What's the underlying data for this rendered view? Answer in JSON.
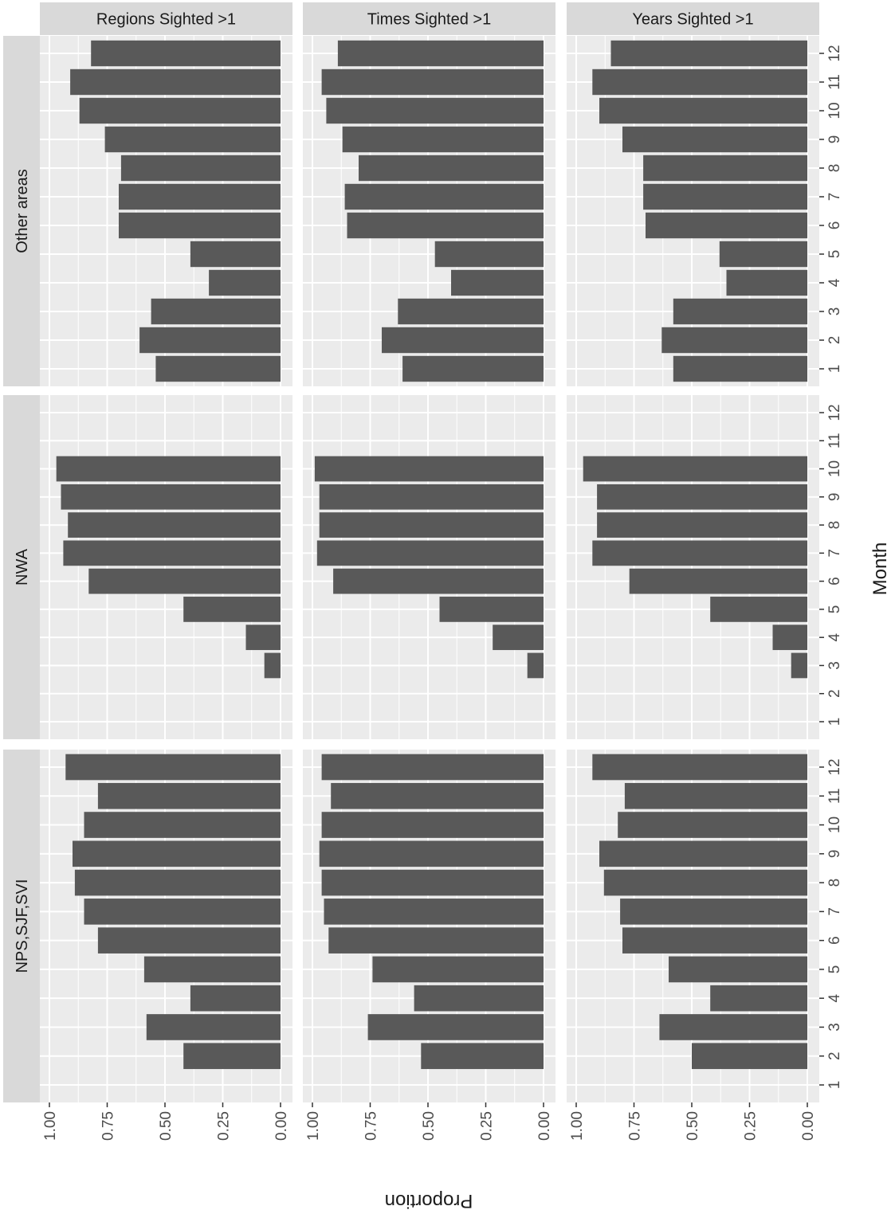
{
  "chart_data": {
    "type": "bar",
    "orientation": "rotated-90-clockwise",
    "xlabel": "Month",
    "ylabel": "Proportion",
    "categories": [
      "1",
      "2",
      "3",
      "4",
      "5",
      "6",
      "7",
      "8",
      "9",
      "10",
      "11",
      "12"
    ],
    "ylim": [
      0,
      1.05
    ],
    "yticks": [
      "0.00",
      "0.25",
      "0.50",
      "0.75",
      "1.00"
    ],
    "grid": true,
    "bar_color": "#595959",
    "panel_bg": "#ebebeb",
    "strip_bg": "#d9d9d9",
    "columns": [
      "Regions Sighted >1",
      "Times Sighted >1",
      "Years Sighted >1"
    ],
    "rows": [
      "Other areas",
      "NWA",
      "NPS,SJF,SVI"
    ],
    "panels": [
      [
        {
          "values": [
            0.54,
            0.61,
            0.56,
            0.31,
            0.39,
            0.7,
            0.7,
            0.69,
            0.76,
            0.87,
            0.91,
            0.82
          ]
        },
        {
          "values": [
            0.61,
            0.7,
            0.63,
            0.4,
            0.47,
            0.85,
            0.86,
            0.8,
            0.87,
            0.94,
            0.96,
            0.89
          ]
        },
        {
          "values": [
            0.58,
            0.63,
            0.58,
            0.35,
            0.38,
            0.7,
            0.71,
            0.71,
            0.8,
            0.9,
            0.93,
            0.85
          ]
        }
      ],
      [
        {
          "values": [
            null,
            null,
            0.07,
            0.15,
            0.42,
            0.83,
            0.94,
            0.92,
            0.95,
            0.97,
            null,
            null
          ]
        },
        {
          "values": [
            null,
            null,
            0.07,
            0.22,
            0.45,
            0.91,
            0.98,
            0.97,
            0.97,
            0.99,
            null,
            null
          ]
        },
        {
          "values": [
            null,
            null,
            0.07,
            0.15,
            0.42,
            0.77,
            0.93,
            0.91,
            0.91,
            0.97,
            null,
            null
          ]
        }
      ],
      [
        {
          "values": [
            null,
            0.42,
            0.58,
            0.39,
            0.59,
            0.79,
            0.85,
            0.89,
            0.9,
            0.85,
            0.79,
            0.93
          ]
        },
        {
          "values": [
            null,
            0.53,
            0.76,
            0.56,
            0.74,
            0.93,
            0.95,
            0.96,
            0.97,
            0.96,
            0.92,
            0.96
          ]
        },
        {
          "values": [
            null,
            0.5,
            0.64,
            0.42,
            0.6,
            0.8,
            0.81,
            0.88,
            0.9,
            0.82,
            0.79,
            0.93
          ]
        }
      ]
    ]
  }
}
